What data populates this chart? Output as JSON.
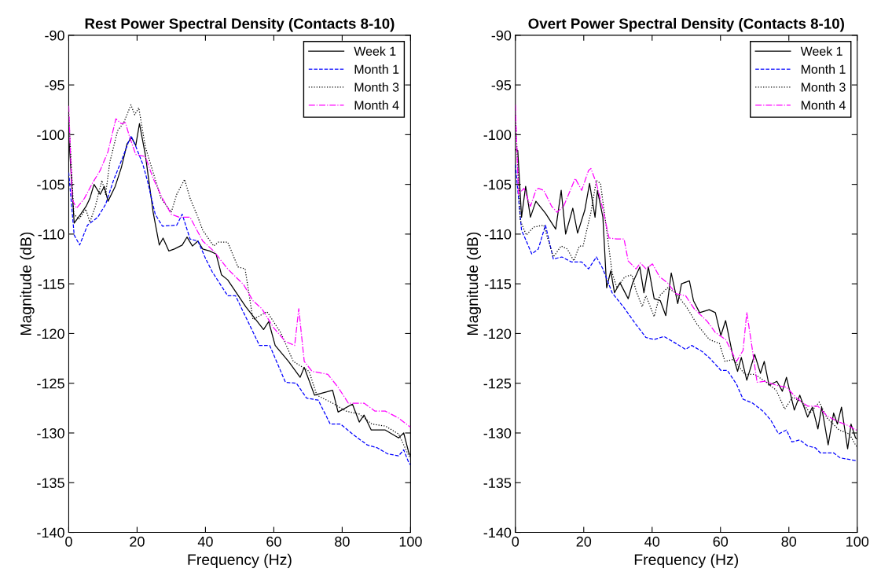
{
  "chart_data": [
    {
      "type": "line",
      "title": "Rest Power Spectral Density (Contacts 8-10)",
      "xlabel": "Frequency (Hz)",
      "ylabel": "Magnitude (dB)",
      "xlim": [
        0,
        100
      ],
      "ylim": [
        -140,
        -90
      ],
      "xticks": [
        0,
        20,
        40,
        60,
        80,
        100
      ],
      "yticks": [
        -140,
        -135,
        -130,
        -125,
        -120,
        -115,
        -110,
        -105,
        -100,
        -95,
        -90
      ],
      "grid": false,
      "legend": "top right",
      "series": [
        {
          "name": "Week 1",
          "color": "#000000",
          "line_style": "solid",
          "x": [
            0,
            1.6,
            3.5,
            5.1,
            6.2,
            7.4,
            9.2,
            10.4,
            11.5,
            13.6,
            15.4,
            17.1,
            18.4,
            19.6,
            20.7,
            22.4,
            24.7,
            26.5,
            27.6,
            29.3,
            30.9,
            33.2,
            34.6,
            36.2,
            37.8,
            39.2,
            41.2,
            43.1,
            44.7,
            46.5,
            51.8,
            57,
            58.5,
            60.4,
            64.3,
            67.7,
            68.9,
            71.9,
            77.2,
            78.8,
            83,
            85,
            86.4,
            88.5,
            92.6,
            96.5,
            98,
            99.5,
            100
          ],
          "values": [
            -100,
            -108.9,
            -108,
            -107.2,
            -106.4,
            -105,
            -106,
            -105.2,
            -106.7,
            -105.2,
            -103.3,
            -100.9,
            -100.3,
            -101.1,
            -98.9,
            -102,
            -107.8,
            -111.1,
            -110.4,
            -111.7,
            -111.5,
            -111.1,
            -110.3,
            -111.2,
            -110.7,
            -111.5,
            -111.7,
            -112,
            -114.1,
            -114.6,
            -117.3,
            -119.6,
            -118.8,
            -121.2,
            -122.8,
            -124.4,
            -123.4,
            -126.2,
            -125.7,
            -127.9,
            -127.1,
            -128.9,
            -128.2,
            -129.7,
            -129.7,
            -130.5,
            -130,
            -132,
            -132.3
          ]
        },
        {
          "name": "Month 1",
          "color": "#0000ff",
          "line_style": "dashed",
          "x": [
            0,
            1.6,
            3.2,
            5.5,
            8.5,
            10.8,
            13.1,
            15.9,
            18.2,
            19.3,
            21.7,
            23,
            25.3,
            27.4,
            31.6,
            33.2,
            35.5,
            37.8,
            40.1,
            42,
            46.5,
            48.8,
            55.8,
            58.8,
            63.4,
            66.6,
            69.6,
            73,
            76.5,
            79.5,
            83,
            87.3,
            90.3,
            93.3,
            96.5,
            98,
            99.5,
            100
          ],
          "values": [
            -103.8,
            -110.1,
            -111.1,
            -109.1,
            -108.3,
            -107,
            -104.6,
            -102.2,
            -100.1,
            -100.9,
            -103,
            -104.6,
            -108,
            -109.2,
            -109.1,
            -108,
            -110.5,
            -110.7,
            -112.5,
            -113.8,
            -116.2,
            -116.2,
            -121.2,
            -121.2,
            -124.9,
            -125,
            -126.5,
            -126.7,
            -129.1,
            -129.1,
            -130.1,
            -131.2,
            -131.5,
            -132.1,
            -132.3,
            -131.7,
            -133,
            -133.2
          ]
        },
        {
          "name": "Month 3",
          "color": "#000000",
          "line_style": "dotted",
          "x": [
            0,
            1.5,
            3,
            5,
            6.2,
            7.8,
            9.7,
            10.8,
            12,
            14.3,
            16.1,
            18.2,
            19.3,
            20.5,
            22.4,
            24.7,
            27,
            30,
            31.6,
            33.9,
            35.5,
            37.8,
            39.2,
            42.4,
            43.8,
            46.5,
            49.5,
            51.6,
            53.9,
            58,
            62,
            65.7,
            70.3,
            72.6,
            77.2,
            81.1,
            85,
            88.7,
            92.6,
            96.5,
            99.5,
            100
          ],
          "values": [
            -98,
            -108,
            -108.5,
            -107.5,
            -108.8,
            -107.2,
            -104.6,
            -106,
            -102.8,
            -99.6,
            -98.8,
            -97,
            -98,
            -97.3,
            -101.2,
            -103.8,
            -106.4,
            -107.8,
            -106,
            -104.5,
            -106.4,
            -108.3,
            -109.6,
            -111.2,
            -110.8,
            -110.8,
            -113.3,
            -113.5,
            -118.6,
            -117.8,
            -119.9,
            -122.8,
            -123.8,
            -126.2,
            -127,
            -127.8,
            -128.1,
            -129.1,
            -129.3,
            -130.1,
            -132.3,
            -132.5
          ]
        },
        {
          "name": "Month 4",
          "color": "#ff00ff",
          "line_style": "dashdot",
          "x": [
            0,
            1,
            2.3,
            4.6,
            6.9,
            9.2,
            11.5,
            13.8,
            15.4,
            16.6,
            17.7,
            19.6,
            22.4,
            24.7,
            27.4,
            30,
            32.3,
            35.5,
            39.2,
            42.4,
            46.5,
            51.2,
            53.9,
            56.5,
            59.9,
            63.4,
            66.1,
            67.3,
            68.9,
            71.2,
            75.8,
            78.8,
            81.8,
            86.4,
            89.6,
            92.6,
            96.5,
            99.5,
            100
          ],
          "values": [
            -97.1,
            -106.5,
            -107.4,
            -106.4,
            -104.9,
            -103.6,
            -101.7,
            -98.4,
            -98.9,
            -98.8,
            -100.1,
            -102,
            -102.2,
            -104.4,
            -106.4,
            -108,
            -108.3,
            -108.3,
            -110.7,
            -111.7,
            -113.5,
            -115.1,
            -116.7,
            -117.5,
            -119.4,
            -120.8,
            -121.2,
            -117.5,
            -122.8,
            -123.8,
            -124.1,
            -125.4,
            -127,
            -127,
            -127.8,
            -127.8,
            -128.5,
            -129.3,
            -129.4
          ]
        }
      ]
    },
    {
      "type": "line",
      "title": "Overt Power Spectral Density (Contacts 8-10)",
      "xlabel": "Frequency (Hz)",
      "ylabel": "Magnitude (dB)",
      "xlim": [
        0,
        100
      ],
      "ylim": [
        -140,
        -90
      ],
      "xticks": [
        0,
        20,
        40,
        60,
        80,
        100
      ],
      "yticks": [
        -140,
        -135,
        -130,
        -125,
        -120,
        -115,
        -110,
        -105,
        -100,
        -95,
        -90
      ],
      "grid": false,
      "legend": "top right",
      "series": [
        {
          "name": "Week 1",
          "color": "#000000",
          "line_style": "solid",
          "x": [
            0,
            0.7,
            1.8,
            3,
            4.4,
            6,
            8.8,
            11.8,
            13.4,
            14.7,
            16.8,
            18.2,
            20.3,
            21.7,
            23.3,
            24,
            25.6,
            26.7,
            27.9,
            29,
            30.6,
            33,
            34.3,
            36.4,
            37.6,
            38.9,
            40.6,
            42.4,
            44,
            45.6,
            47.5,
            48.6,
            50.9,
            52.1,
            53.9,
            56.7,
            58.5,
            60.1,
            61.5,
            63.6,
            65,
            66.1,
            67.7,
            70,
            71.7,
            72.8,
            74.2,
            76.5,
            78.1,
            79.3,
            81.6,
            83.2,
            85.5,
            86.9,
            88.5,
            89.6,
            91.5,
            93.1,
            94.2,
            95.4,
            97.2,
            98.2,
            99.5,
            100
          ],
          "values": [
            -101.5,
            -101.6,
            -108.3,
            -105.2,
            -108.3,
            -106.7,
            -107.9,
            -109.5,
            -105.6,
            -110,
            -107.4,
            -109.9,
            -107.6,
            -104.9,
            -108.3,
            -105.6,
            -108.3,
            -115.4,
            -113.7,
            -115.9,
            -114.9,
            -116.5,
            -114.9,
            -113.3,
            -115.9,
            -113.3,
            -116.5,
            -116.7,
            -118.2,
            -113.9,
            -117,
            -115,
            -114.7,
            -116.7,
            -117.9,
            -117.6,
            -117.9,
            -120.2,
            -118.7,
            -122.2,
            -123.8,
            -122.4,
            -124.7,
            -122.1,
            -124,
            -122.8,
            -125.2,
            -124.8,
            -125.8,
            -124.4,
            -127.7,
            -126.2,
            -128.4,
            -127.4,
            -129.6,
            -127.4,
            -131.2,
            -128,
            -129.1,
            -127.4,
            -131.6,
            -129.1,
            -130.5,
            -130.6
          ]
        },
        {
          "name": "Month 1",
          "color": "#0000ff",
          "line_style": "dashed",
          "x": [
            0,
            1.8,
            3.2,
            4.8,
            6.7,
            8.8,
            11.1,
            13.6,
            16.4,
            19.4,
            21.4,
            23.7,
            25.6,
            28.3,
            32,
            35.3,
            38.2,
            40.6,
            43.5,
            47,
            49.8,
            51.6,
            54.6,
            56.9,
            60.1,
            62,
            64.7,
            66.6,
            69.4,
            72.4,
            74.7,
            77,
            79.3,
            80.9,
            83.2,
            85.5,
            87.8,
            89.2,
            93.1,
            95,
            100
          ],
          "values": [
            -103,
            -109.6,
            -110.7,
            -112,
            -111.5,
            -109.1,
            -112.5,
            -112.3,
            -112.8,
            -112.8,
            -113.5,
            -112.3,
            -113.5,
            -115.9,
            -117.5,
            -119.1,
            -120.4,
            -120.6,
            -120.3,
            -121,
            -121.6,
            -121.2,
            -121.8,
            -122.5,
            -123.7,
            -123.7,
            -125.1,
            -126.6,
            -127,
            -127.8,
            -128.7,
            -130.1,
            -129.7,
            -130.9,
            -130.7,
            -131.3,
            -131.5,
            -132,
            -132,
            -132.5,
            -132.8
          ]
        },
        {
          "name": "Month 3",
          "color": "#000000",
          "line_style": "dotted",
          "x": [
            0,
            1.4,
            3.2,
            5.3,
            8.3,
            11.1,
            13.4,
            15.2,
            17.1,
            18.7,
            19.8,
            22.1,
            23.7,
            24.9,
            26.7,
            28.3,
            29.7,
            32,
            34.1,
            35.3,
            37.1,
            38.2,
            40.6,
            42.2,
            44.5,
            46.8,
            50,
            53.2,
            56.7,
            59.7,
            61.3,
            63.8,
            67.1,
            70,
            73,
            76.3,
            78.8,
            81.1,
            83.9,
            86.2,
            88.9,
            91.2,
            94.7,
            97.7,
            99.5,
            100
          ],
          "values": [
            -98,
            -108.6,
            -110.1,
            -109.3,
            -109.1,
            -112.3,
            -111.2,
            -111.5,
            -112.7,
            -111.2,
            -111.2,
            -107.8,
            -104.6,
            -104.9,
            -109.6,
            -113.9,
            -115.4,
            -114.3,
            -114.1,
            -115.7,
            -117.3,
            -116.2,
            -118.3,
            -116.2,
            -115.4,
            -115.9,
            -117.3,
            -119.1,
            -120.6,
            -121,
            -122.8,
            -122.6,
            -124.1,
            -124.1,
            -124.8,
            -125.7,
            -127.6,
            -126.4,
            -126.9,
            -128,
            -126.9,
            -128.5,
            -129.7,
            -130.1,
            -131.2,
            -131.4
          ]
        },
        {
          "name": "Month 4",
          "color": "#ff00ff",
          "line_style": "dashdot",
          "x": [
            0,
            0.9,
            2.5,
            4.4,
            6,
            6.7,
            8.3,
            10.6,
            12.2,
            14.1,
            15.7,
            17.5,
            19.4,
            21.4,
            22.1,
            23.7,
            25.6,
            27.4,
            29.7,
            31.8,
            33,
            35.3,
            36.6,
            38.2,
            40.1,
            42.2,
            44.5,
            47,
            49.8,
            52.3,
            56.2,
            58.5,
            61.5,
            64.7,
            66.6,
            67.7,
            68.9,
            70.7,
            73,
            76.3,
            79.3,
            82.3,
            85.5,
            88.5,
            91.2,
            94.7,
            97.7,
            99.5,
            100
          ],
          "values": [
            -97,
            -106,
            -105.4,
            -107.2,
            -105.6,
            -105.4,
            -105.6,
            -107.2,
            -107.8,
            -107.2,
            -105.9,
            -104.4,
            -105.6,
            -103.6,
            -103.4,
            -104.9,
            -107.5,
            -110.4,
            -110.5,
            -110.5,
            -112.7,
            -113.5,
            -112.9,
            -113.5,
            -113,
            -114.3,
            -114.9,
            -116,
            -116.2,
            -117.5,
            -118.8,
            -119.9,
            -120.6,
            -122.8,
            -121.7,
            -117.9,
            -120.6,
            -124.9,
            -124.8,
            -125.2,
            -125.4,
            -126.5,
            -127.3,
            -127.3,
            -128.3,
            -128.9,
            -129.3,
            -129.7,
            -129.7
          ]
        }
      ]
    }
  ]
}
